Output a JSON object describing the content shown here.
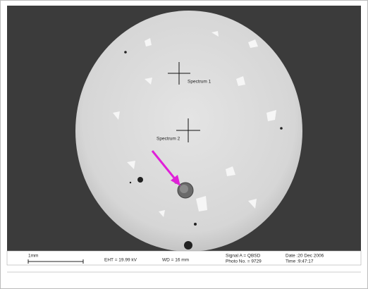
{
  "image": {
    "labels": [
      "Spectrum 1",
      "Spectrum 2"
    ]
  },
  "info_bar": {
    "scale": "1mm",
    "eht": "EHT = 19.99 kV",
    "wd": "WD =  16 mm",
    "signal": "Signal A = QBSD",
    "photo": "Photo No. = 9729",
    "date": "Date :20 Dec 2006",
    "time": "Time :9:47:17"
  }
}
